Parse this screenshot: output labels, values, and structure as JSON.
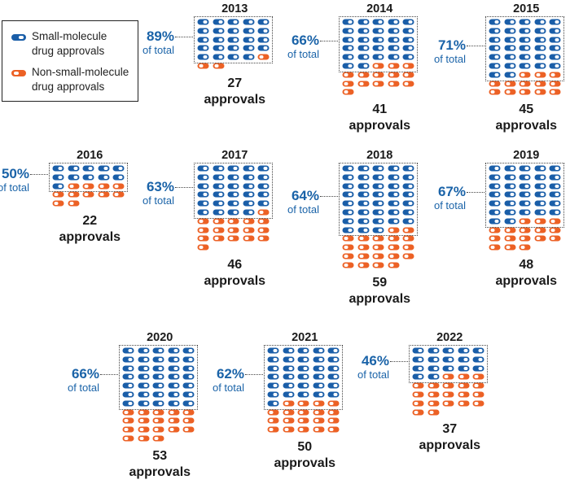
{
  "chart_data": {
    "type": "waffle",
    "units": "drug approvals",
    "legend": [
      {
        "key": "small",
        "label": "Small-molecule drug approvals",
        "line1": "Small-molecule",
        "line2": "drug approvals",
        "color": "#1a5ea8"
      },
      {
        "key": "nonsmall",
        "label": "Non-small-molecule drug approvals",
        "line1": "Non-small-molecule",
        "line2": "drug approvals",
        "color": "#ec6125"
      }
    ],
    "total_suffix": "approvals",
    "of_total_label": "of total",
    "years": [
      {
        "year": "2013",
        "total": 27,
        "small": 24,
        "percent_label": "89%"
      },
      {
        "year": "2014",
        "total": 41,
        "small": 27,
        "percent_label": "66%"
      },
      {
        "year": "2015",
        "total": 45,
        "small": 32,
        "percent_label": "71%"
      },
      {
        "year": "2016",
        "total": 22,
        "small": 11,
        "percent_label": "50%"
      },
      {
        "year": "2017",
        "total": 46,
        "small": 29,
        "percent_label": "63%"
      },
      {
        "year": "2018",
        "total": 59,
        "small": 38,
        "percent_label": "64%"
      },
      {
        "year": "2019",
        "total": 48,
        "small": 32,
        "percent_label": "67%"
      },
      {
        "year": "2020",
        "total": 53,
        "small": 35,
        "percent_label": "66%"
      },
      {
        "year": "2021",
        "total": 50,
        "small": 31,
        "percent_label": "62%"
      },
      {
        "year": "2022",
        "total": 37,
        "small": 17,
        "percent_label": "46%"
      }
    ]
  }
}
